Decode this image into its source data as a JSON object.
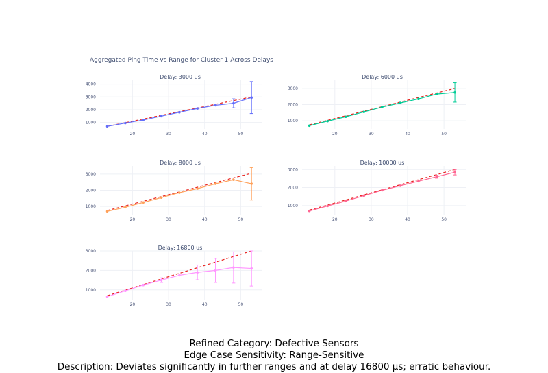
{
  "figure": {
    "title": "Aggregated Ping Time vs Range for Cluster 1 Across Delays"
  },
  "caption": {
    "line1": "Refined Category: Defective Sensors",
    "line2": "Edge Case Sensitivity: Range-Sensitive",
    "line3": "Description: Deviates significantly in further ranges and at delay 16800 µs; erratic behaviour."
  },
  "colors": {
    "fit_line": "#e8231f",
    "grid": "#eef0f5",
    "tick_text": "#4a5578",
    "title_text": "#3f4d70"
  },
  "chart_data": [
    {
      "type": "line",
      "title": "Delay: 3000 us",
      "color": "#636efa",
      "xlim": [
        11,
        56
      ],
      "ylim": [
        500,
        4300
      ],
      "xticks": [
        20,
        30,
        40,
        50
      ],
      "yticks": [
        1000,
        2000,
        3000,
        4000
      ],
      "x": [
        13,
        18,
        23,
        28,
        33,
        38,
        43,
        48,
        53
      ],
      "y": [
        700,
        950,
        1200,
        1500,
        1800,
        2100,
        2350,
        2500,
        2950
      ],
      "error": [
        0,
        0,
        0,
        0,
        0,
        0,
        0,
        350,
        1250
      ],
      "fit": [
        [
          13,
          700
        ],
        [
          53,
          3000
        ]
      ]
    },
    {
      "type": "line",
      "title": "Delay: 6000 us",
      "color": "#00cc96",
      "xlim": [
        11,
        56
      ],
      "ylim": [
        500,
        3500
      ],
      "xticks": [
        20,
        30,
        40,
        50
      ],
      "yticks": [
        1000,
        2000,
        3000
      ],
      "x": [
        13,
        18,
        23,
        28,
        33,
        38,
        43,
        48,
        53
      ],
      "y": [
        700,
        980,
        1250,
        1550,
        1850,
        2100,
        2350,
        2650,
        2750
      ],
      "error": [
        0,
        0,
        0,
        0,
        0,
        0,
        0,
        0,
        600
      ],
      "fit": [
        [
          13,
          750
        ],
        [
          53,
          3000
        ]
      ]
    },
    {
      "type": "line",
      "title": "Delay: 8000 us",
      "color": "#ffa15a",
      "xlim": [
        11,
        56
      ],
      "ylim": [
        500,
        3500
      ],
      "xticks": [
        20,
        30,
        40,
        50
      ],
      "yticks": [
        1000,
        2000,
        3000
      ],
      "x": [
        13,
        18,
        23,
        28,
        33,
        38,
        43,
        48,
        53
      ],
      "y": [
        700,
        950,
        1250,
        1550,
        1850,
        2100,
        2400,
        2650,
        2400
      ],
      "error": [
        0,
        0,
        0,
        0,
        0,
        0,
        0,
        0,
        1000
      ],
      "fit": [
        [
          13,
          750
        ],
        [
          53,
          3050
        ]
      ]
    },
    {
      "type": "line",
      "title": "Delay: 10000 us",
      "color": "#ff6692",
      "xlim": [
        11,
        56
      ],
      "ylim": [
        500,
        3200
      ],
      "xticks": [
        20,
        30,
        40,
        50
      ],
      "yticks": [
        1000,
        2000,
        3000
      ],
      "x": [
        13,
        18,
        23,
        28,
        33,
        38,
        43,
        48,
        53
      ],
      "y": [
        700,
        980,
        1250,
        1550,
        1850,
        2100,
        2350,
        2600,
        2850
      ],
      "error": [
        0,
        0,
        0,
        0,
        0,
        0,
        0,
        80,
        150
      ],
      "fit": [
        [
          13,
          750
        ],
        [
          53,
          3000
        ]
      ]
    },
    {
      "type": "line",
      "title": "Delay: 16800 us",
      "color": "#ff97ff",
      "xlim": [
        11,
        56
      ],
      "ylim": [
        500,
        3000
      ],
      "xticks": [
        20,
        30,
        40,
        50
      ],
      "yticks": [
        1000,
        2000,
        3000
      ],
      "x": [
        13,
        18,
        23,
        28,
        33,
        38,
        43,
        48,
        53
      ],
      "y": [
        650,
        950,
        1250,
        1500,
        1750,
        1900,
        2000,
        2150,
        2100
      ],
      "error": [
        0,
        0,
        0,
        120,
        0,
        380,
        620,
        800,
        900
      ],
      "fit": [
        [
          13,
          700
        ],
        [
          53,
          3000
        ]
      ]
    }
  ]
}
